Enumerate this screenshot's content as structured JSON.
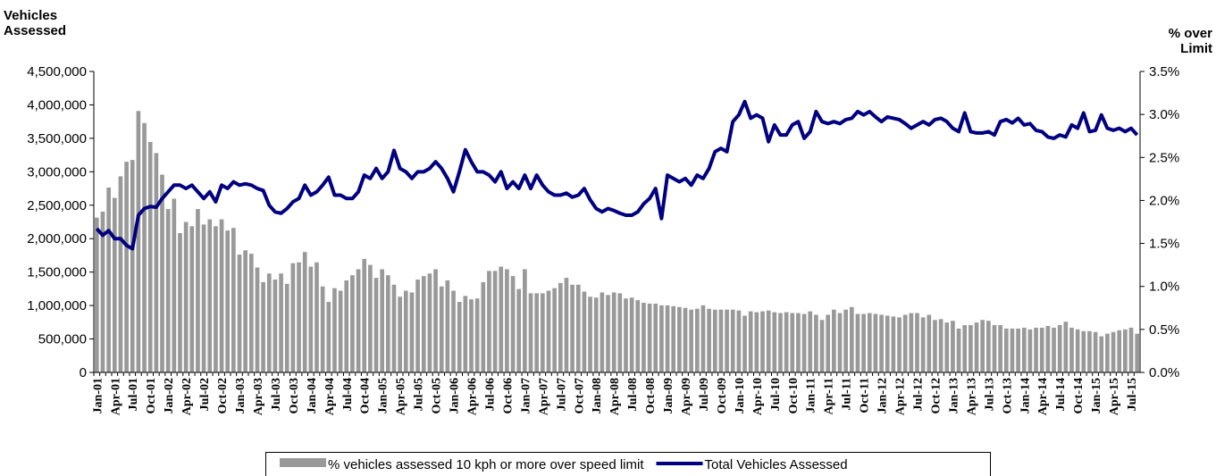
{
  "chart_data": {
    "type": "combo",
    "y_label": "Vehicles Assessed",
    "y2_label": "% over Limit",
    "categories": [
      "Jan-01",
      null,
      null,
      "Apr-01",
      null,
      null,
      "Jul-01",
      null,
      null,
      "Oct-01",
      null,
      null,
      "Jan-02",
      null,
      null,
      "Apr-02",
      null,
      null,
      "Jul-02",
      null,
      null,
      "Oct-02",
      null,
      null,
      "Jan-03",
      null,
      null,
      "Apr-03",
      null,
      null,
      "Jul-03",
      null,
      null,
      "Oct-03",
      null,
      null,
      "Jan-04",
      null,
      null,
      "Apr-04",
      null,
      null,
      "Jul-04",
      null,
      null,
      "Oct-04",
      null,
      null,
      "Jan-05",
      null,
      null,
      "Apr-05",
      null,
      null,
      "Jul-05",
      null,
      null,
      "Oct-05",
      null,
      null,
      "Jan-06",
      null,
      null,
      "Apr-06",
      null,
      null,
      "Jul-06",
      null,
      null,
      "Oct-06",
      null,
      null,
      "Jan-07",
      null,
      null,
      "Apr-07",
      null,
      null,
      "Jul-07",
      null,
      null,
      "Oct-07",
      null,
      null,
      "Jan-08",
      null,
      null,
      "Apr-08",
      null,
      null,
      "Jul-08",
      null,
      null,
      "Oct-08",
      null,
      null,
      "Jan-09",
      null,
      null,
      "Apr-09",
      null,
      null,
      "Jul-09",
      null,
      null,
      "Oct-09",
      null,
      null,
      "Jan-10",
      null,
      null,
      "Apr-10",
      null,
      null,
      "Jul-10",
      null,
      null,
      "Oct-10",
      null,
      null,
      "Jan-11",
      null,
      null,
      "Apr-11",
      null,
      null,
      "Jul-11",
      null,
      null,
      "Oct-11",
      null,
      null,
      "Jan-12",
      null,
      null,
      "Apr-12",
      null,
      null,
      "Jul-12",
      null,
      null,
      "Oct-12",
      null,
      null,
      "Jan-13",
      null,
      null,
      "Apr-13",
      null,
      null,
      "Jul-13",
      null,
      null,
      "Oct-13",
      null,
      null,
      "Jan-14",
      null,
      null,
      "Apr-14",
      null,
      null,
      "Jul-14",
      null,
      null,
      "Oct-14",
      null,
      null,
      "Jan-15",
      null,
      null,
      "Apr-15",
      null,
      null,
      "Jul-15",
      null
    ],
    "series": [
      {
        "name": "% vehicles assessed 10 kph or more over speed limit",
        "type": "bar",
        "axis": "y2",
        "color": "#999999",
        "values": [
          1.8,
          1.87,
          2.15,
          2.03,
          2.28,
          2.45,
          2.47,
          3.04,
          2.9,
          2.68,
          2.55,
          2.3,
          1.9,
          2.02,
          1.62,
          1.75,
          1.7,
          1.9,
          1.72,
          1.78,
          1.7,
          1.78,
          1.65,
          1.68,
          1.37,
          1.42,
          1.38,
          1.22,
          1.05,
          1.15,
          1.08,
          1.15,
          1.03,
          1.27,
          1.28,
          1.4,
          1.23,
          1.28,
          1.0,
          0.82,
          0.98,
          0.95,
          1.07,
          1.13,
          1.2,
          1.32,
          1.25,
          1.1,
          1.2,
          1.13,
          1.02,
          0.88,
          0.95,
          0.93,
          1.08,
          1.12,
          1.15,
          1.2,
          1.0,
          1.07,
          0.95,
          0.82,
          0.89,
          0.85,
          0.86,
          1.05,
          1.18,
          1.18,
          1.23,
          1.2,
          1.12,
          0.97,
          1.2,
          0.92,
          0.92,
          0.92,
          0.95,
          0.98,
          1.04,
          1.1,
          1.02,
          1.02,
          0.94,
          0.88,
          0.87,
          0.93,
          0.9,
          0.93,
          0.92,
          0.86,
          0.87,
          0.84,
          0.81,
          0.8,
          0.8,
          0.78,
          0.78,
          0.77,
          0.76,
          0.75,
          0.73,
          0.74,
          0.78,
          0.74,
          0.73,
          0.73,
          0.73,
          0.73,
          0.72,
          0.66,
          0.71,
          0.7,
          0.71,
          0.72,
          0.7,
          0.69,
          0.7,
          0.69,
          0.69,
          0.68,
          0.71,
          0.67,
          0.61,
          0.67,
          0.73,
          0.69,
          0.73,
          0.76,
          0.68,
          0.68,
          0.69,
          0.68,
          0.67,
          0.66,
          0.65,
          0.64,
          0.67,
          0.69,
          0.69,
          0.64,
          0.67,
          0.61,
          0.62,
          0.58,
          0.6,
          0.51,
          0.55,
          0.55,
          0.58,
          0.61,
          0.6,
          0.55,
          0.55,
          0.51,
          0.51,
          0.51,
          0.52,
          0.5,
          0.52,
          0.52,
          0.54,
          0.52,
          0.55,
          0.59,
          0.52,
          0.5,
          0.48,
          0.48,
          0.47,
          0.42,
          0.45,
          0.47,
          0.49,
          0.5,
          0.52,
          0.45
        ]
      },
      {
        "name": "Total Vehicles Assessed",
        "type": "line",
        "axis": "y",
        "color": "#000080",
        "values": [
          2150000,
          2050000,
          2120000,
          2000000,
          2000000,
          1900000,
          1850000,
          2350000,
          2450000,
          2480000,
          2470000,
          2600000,
          2700000,
          2800000,
          2800000,
          2750000,
          2800000,
          2700000,
          2600000,
          2700000,
          2550000,
          2800000,
          2750000,
          2850000,
          2800000,
          2820000,
          2800000,
          2750000,
          2720000,
          2500000,
          2400000,
          2380000,
          2450000,
          2550000,
          2600000,
          2800000,
          2650000,
          2700000,
          2800000,
          2920000,
          2650000,
          2650000,
          2600000,
          2600000,
          2700000,
          2950000,
          2900000,
          3050000,
          2900000,
          3000000,
          3320000,
          3050000,
          3000000,
          2900000,
          3000000,
          3000000,
          3050000,
          3150000,
          3050000,
          2900000,
          2700000,
          3000000,
          3330000,
          3150000,
          3000000,
          3000000,
          2950000,
          2850000,
          3000000,
          2750000,
          2850000,
          2750000,
          2950000,
          2750000,
          2950000,
          2800000,
          2700000,
          2650000,
          2650000,
          2680000,
          2620000,
          2650000,
          2750000,
          2580000,
          2450000,
          2400000,
          2450000,
          2420000,
          2380000,
          2350000,
          2350000,
          2400000,
          2520000,
          2600000,
          2750000,
          2300000,
          2950000,
          2900000,
          2850000,
          2900000,
          2800000,
          2950000,
          2900000,
          3050000,
          3300000,
          3350000,
          3300000,
          3750000,
          3850000,
          4050000,
          3800000,
          3850000,
          3800000,
          3450000,
          3700000,
          3550000,
          3550000,
          3700000,
          3750000,
          3500000,
          3600000,
          3900000,
          3750000,
          3720000,
          3750000,
          3720000,
          3780000,
          3800000,
          3900000,
          3850000,
          3900000,
          3820000,
          3750000,
          3820000,
          3800000,
          3780000,
          3720000,
          3650000,
          3700000,
          3750000,
          3700000,
          3780000,
          3800000,
          3750000,
          3650000,
          3600000,
          3880000,
          3600000,
          3580000,
          3580000,
          3600000,
          3550000,
          3750000,
          3780000,
          3730000,
          3800000,
          3700000,
          3720000,
          3620000,
          3600000,
          3520000,
          3500000,
          3550000,
          3520000,
          3700000,
          3650000,
          3880000,
          3600000,
          3620000,
          3850000,
          3650000,
          3620000,
          3650000,
          3600000,
          3650000,
          3550000
        ]
      }
    ],
    "ylim": [
      0,
      4500000
    ],
    "yticks": [
      0,
      {
        "value": 500000,
        "label": "500,000"
      },
      {
        "value": 1000000,
        "label": "1,000,000"
      },
      {
        "value": 1500000,
        "label": "1,500,000"
      },
      {
        "value": 2000000,
        "label": "2,000,000"
      },
      {
        "value": 2500000,
        "label": "2,500,000"
      },
      {
        "value": 3000000,
        "label": "3,000,000"
      },
      {
        "value": 3500000,
        "label": "3,500,000"
      },
      {
        "value": 4000000,
        "label": "4,000,000"
      },
      {
        "value": 4500000,
        "label": "4,500,000"
      }
    ],
    "y2lim": [
      0,
      3.5
    ],
    "y2ticks": [
      {
        "value": 0,
        "label": "0.0%"
      },
      {
        "value": 0.5,
        "label": "0.5%"
      },
      {
        "value": 1,
        "label": "1.0%"
      },
      {
        "value": 1.5,
        "label": "1.5%"
      },
      {
        "value": 2,
        "label": "2.0%"
      },
      {
        "value": 2.5,
        "label": "2.5%"
      },
      {
        "value": 3,
        "label": "3.0%"
      },
      {
        "value": 3.5,
        "label": "3.5%"
      }
    ],
    "legend": "bottom"
  }
}
